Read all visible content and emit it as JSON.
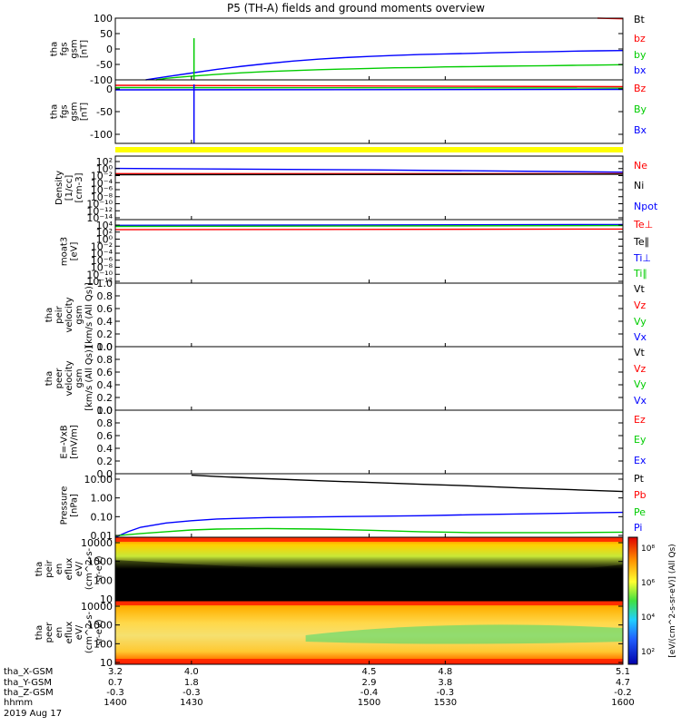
{
  "title": "P5 (TH-A) fields and ground moments overview",
  "colors": {
    "black": "#000000",
    "red": "#ff0000",
    "green": "#00cc00",
    "blue": "#0000ff",
    "yellow": "#ffff00"
  },
  "chart_data": [
    {
      "type": "line",
      "id": "fgs-gsm-nt",
      "ylabel_lines": [
        "tha",
        "fgs",
        "gsm",
        "[nT]"
      ],
      "ylim": [
        -100,
        100
      ],
      "yticks": [
        100,
        50,
        0,
        -50,
        -100
      ],
      "legend": [
        {
          "label": "Bt",
          "color": "#000000"
        },
        {
          "label": "bz",
          "color": "#ff0000"
        },
        {
          "label": "by",
          "color": "#00cc00"
        },
        {
          "label": "bx",
          "color": "#0000ff"
        }
      ],
      "series": [
        {
          "name": "bx",
          "color": "#0000ff",
          "x": [
            1412,
            1420,
            1430,
            1440,
            1450,
            1460,
            1470,
            1480,
            1490,
            1500,
            1510,
            1520,
            1530,
            1540,
            1550,
            1560,
            1570,
            1580,
            1590,
            1600
          ],
          "y": [
            -100,
            -90,
            -78,
            -66,
            -56,
            -47,
            -39,
            -33,
            -28,
            -24,
            -21,
            -18,
            -16,
            -14,
            -12,
            -10,
            -9,
            -7,
            -6,
            -5
          ]
        },
        {
          "name": "by",
          "color": "#00cc00",
          "x": [
            1416,
            1420,
            1430,
            1440,
            1450,
            1460,
            1470,
            1480,
            1490,
            1500,
            1510,
            1520,
            1530,
            1540,
            1550,
            1560,
            1570,
            1580,
            1590,
            1600
          ],
          "y": [
            -100,
            -95,
            -88,
            -82,
            -77,
            -73,
            -70,
            -67,
            -65,
            -63,
            -61,
            -60,
            -58,
            -57,
            -56,
            -55,
            -54,
            -53,
            -52,
            -51
          ]
        },
        {
          "name": "bz",
          "color": "#ff0000",
          "x": [
            1590,
            1600
          ],
          "y": [
            100,
            98
          ]
        }
      ],
      "spike": {
        "x": 1431,
        "color": "#00cc00",
        "y": [
          -100,
          35
        ]
      }
    },
    {
      "type": "line",
      "id": "fgs-gse-nt",
      "ylabel_lines": [
        "tha",
        "fgs",
        "gsm",
        "[nT]"
      ],
      "ylim": [
        -120,
        20
      ],
      "yticks": [
        0,
        -50,
        -100
      ],
      "legend": [
        {
          "label": "Bz",
          "color": "#ff0000"
        },
        {
          "label": "By",
          "color": "#00cc00"
        },
        {
          "label": "Bx",
          "color": "#0000ff"
        }
      ],
      "series": [
        {
          "name": "Bz",
          "color": "#ff0000",
          "x": [
            1400,
            1600
          ],
          "y": [
            8,
            5
          ]
        },
        {
          "name": "By",
          "color": "#00cc00",
          "x": [
            1400,
            1600
          ],
          "y": [
            3,
            2
          ]
        },
        {
          "name": "Bx",
          "color": "#0000ff",
          "x": [
            1400,
            1600
          ],
          "y": [
            -2,
            -1
          ]
        }
      ],
      "spike": {
        "x": 1431,
        "color": "#0000ff",
        "y": [
          -120,
          10
        ]
      }
    },
    {
      "type": "line",
      "id": "density",
      "ylabel_lines": [
        "Density",
        "[1/cc]",
        "[cm-3]"
      ],
      "scale": "log",
      "ylim": [
        1e-14,
        1000
      ],
      "yticks": [
        "10²",
        "10⁰",
        "10⁻²",
        "10⁻⁴",
        "10⁻⁶",
        "10⁻⁸",
        "10⁻¹⁰",
        "10⁻¹²",
        "10⁻¹⁴"
      ],
      "legend": [
        {
          "label": "Ne",
          "color": "#ff0000"
        },
        {
          "label": "Ni",
          "color": "#000000"
        },
        {
          "label": "Npot",
          "color": "#0000ff"
        }
      ],
      "series": [
        {
          "name": "Npot",
          "color": "#0000ff",
          "x": [
            1400,
            1500,
            1600
          ],
          "y": [
            0.5,
            0.2,
            0.05
          ]
        },
        {
          "name": "Ne",
          "color": "#ff0000",
          "x": [
            1400,
            1600
          ],
          "y": [
            0.02,
            0.02
          ]
        },
        {
          "name": "Ni",
          "color": "#000000",
          "x": [
            1400,
            1600
          ],
          "y": [
            0.01,
            0.015
          ]
        }
      ]
    },
    {
      "type": "line",
      "id": "temperature",
      "ylabel_lines": [
        "moat3",
        "[eV]"
      ],
      "scale": "log",
      "ylim": [
        1e-12,
        100000
      ],
      "yticks": [
        "10⁴",
        "10²",
        "10⁰",
        "10⁻²",
        "10⁻⁴",
        "10⁻⁶",
        "10⁻⁸",
        "10⁻¹⁰",
        "10⁻¹²"
      ],
      "legend": [
        {
          "label": "Te⊥",
          "color": "#ff0000"
        },
        {
          "label": "Te∥",
          "color": "#000000"
        },
        {
          "label": "Ti⊥",
          "color": "#0000ff"
        },
        {
          "label": "Ti∥",
          "color": "#00cc00"
        }
      ],
      "series": [
        {
          "name": "Ti⊥",
          "color": "#0000ff",
          "x": [
            1400,
            1600
          ],
          "y": [
            3000,
            5000
          ]
        },
        {
          "name": "Ti∥",
          "color": "#00cc00",
          "x": [
            1400,
            1600
          ],
          "y": [
            1500,
            2500
          ]
        },
        {
          "name": "Te⊥",
          "color": "#ff0000",
          "x": [
            1400,
            1600
          ],
          "y": [
            200,
            300
          ]
        }
      ]
    },
    {
      "type": "line",
      "id": "peir-velocity",
      "ylabel_lines": [
        "tha",
        "peir",
        "velocity",
        "gsm",
        "[km/s (All Qs)]"
      ],
      "ylim": [
        0,
        1
      ],
      "yticks": [
        "1.0",
        "0.8",
        "0.6",
        "0.4",
        "0.2",
        "0.0"
      ],
      "legend": [
        {
          "label": "Vt",
          "color": "#000000"
        },
        {
          "label": "Vz",
          "color": "#ff0000"
        },
        {
          "label": "Vy",
          "color": "#00cc00"
        },
        {
          "label": "Vx",
          "color": "#0000ff"
        }
      ],
      "series": []
    },
    {
      "type": "line",
      "id": "peer-velocity",
      "ylabel_lines": [
        "tha",
        "peer",
        "velocity",
        "gsm",
        "[km/s (All Qs)]"
      ],
      "ylim": [
        0,
        1
      ],
      "yticks": [
        "1.0",
        "0.8",
        "0.6",
        "0.4",
        "0.2",
        "0.0"
      ],
      "legend": [
        {
          "label": "Vt",
          "color": "#000000"
        },
        {
          "label": "Vz",
          "color": "#ff0000"
        },
        {
          "label": "Vy",
          "color": "#00cc00"
        },
        {
          "label": "Vx",
          "color": "#0000ff"
        }
      ],
      "series": []
    },
    {
      "type": "line",
      "id": "efield",
      "ylabel_lines": [
        "E=-VxB",
        "[mV/m]"
      ],
      "ylim": [
        0,
        1
      ],
      "yticks": [
        "1.0",
        "0.8",
        "0.6",
        "0.4",
        "0.2",
        "0.0"
      ],
      "legend": [
        {
          "label": "Ez",
          "color": "#ff0000"
        },
        {
          "label": "Ey",
          "color": "#00cc00"
        },
        {
          "label": "Ex",
          "color": "#0000ff"
        }
      ],
      "series": []
    },
    {
      "type": "line",
      "id": "pressure",
      "ylabel_lines": [
        "Pressure",
        "[nPa]"
      ],
      "scale": "log",
      "ylim": [
        0.01,
        30
      ],
      "yticks": [
        "10.00",
        "1.00",
        "0.10",
        "0.01"
      ],
      "legend": [
        {
          "label": "Pt",
          "color": "#000000"
        },
        {
          "label": "Pb",
          "color": "#ff0000"
        },
        {
          "label": "Pe",
          "color": "#00cc00"
        },
        {
          "label": "Pi",
          "color": "#0000ff"
        }
      ],
      "series": [
        {
          "name": "Pt",
          "color": "#000000",
          "x": [
            1430,
            1440,
            1460,
            1480,
            1500,
            1520,
            1540,
            1560,
            1580,
            1600
          ],
          "y": [
            25,
            21,
            16,
            12.5,
            10,
            8,
            6.5,
            5,
            4,
            3.2
          ]
        },
        {
          "name": "Pi",
          "color": "#0000ff",
          "x": [
            1400,
            1405,
            1410,
            1420,
            1430,
            1440,
            1460,
            1480,
            1500,
            1520,
            1540,
            1560,
            1580,
            1600
          ],
          "y": [
            0.01,
            0.02,
            0.035,
            0.06,
            0.08,
            0.1,
            0.12,
            0.13,
            0.14,
            0.15,
            0.17,
            0.19,
            0.21,
            0.23
          ]
        },
        {
          "name": "Pe",
          "color": "#00cc00",
          "x": [
            1400,
            1410,
            1420,
            1430,
            1440,
            1460,
            1480,
            1500,
            1520,
            1540,
            1560,
            1580,
            1600
          ],
          "y": [
            0.012,
            0.016,
            0.02,
            0.025,
            0.028,
            0.03,
            0.028,
            0.024,
            0.02,
            0.018,
            0.018,
            0.018,
            0.019
          ]
        }
      ]
    },
    {
      "type": "heatmap",
      "id": "peir-spectrogram",
      "ylabel_lines": [
        "tha",
        "peir",
        "en",
        "eflux",
        "eV/",
        "(cm^2-s-",
        "sr-eV)"
      ],
      "scale": "log",
      "ylim": [
        5,
        25000
      ],
      "yticks": [
        "10000",
        "1000",
        "100",
        "10"
      ]
    },
    {
      "type": "heatmap",
      "id": "peer-spectrogram",
      "ylabel_lines": [
        "tha",
        "peer",
        "en",
        "eflux",
        "eV/",
        "(cm^2-s-",
        "sr-eV)"
      ],
      "scale": "log",
      "ylim": [
        5,
        25000
      ],
      "yticks": [
        "10000",
        "1000",
        "100",
        "10"
      ]
    }
  ],
  "colorbar": {
    "label": "[eV/(cm^2-s-sr-eV)] (All Qs)",
    "ticks": [
      "10⁸",
      "10⁶",
      "10⁴",
      "10²"
    ]
  },
  "x_axis": {
    "row_labels": [
      "tha_X-GSM",
      "tha_Y-GSM",
      "tha_Z-GSM",
      "hhmm",
      "2019 Aug 17"
    ],
    "columns": [
      {
        "x": 1400,
        "values": [
          "3.2",
          "0.7",
          "-0.3",
          "1400"
        ]
      },
      {
        "x": 1430,
        "values": [
          "4.0",
          "1.8",
          "-0.3",
          "1430"
        ]
      },
      {
        "x": 1500,
        "values": [
          "4.5",
          "2.9",
          "-0.4",
          "1500"
        ]
      },
      {
        "x": 1530,
        "values": [
          "4.8",
          "3.8",
          "-0.3",
          "1530"
        ]
      },
      {
        "x": 1600,
        "values": [
          "5.1",
          "4.7",
          "-0.2",
          "1600"
        ]
      }
    ]
  }
}
